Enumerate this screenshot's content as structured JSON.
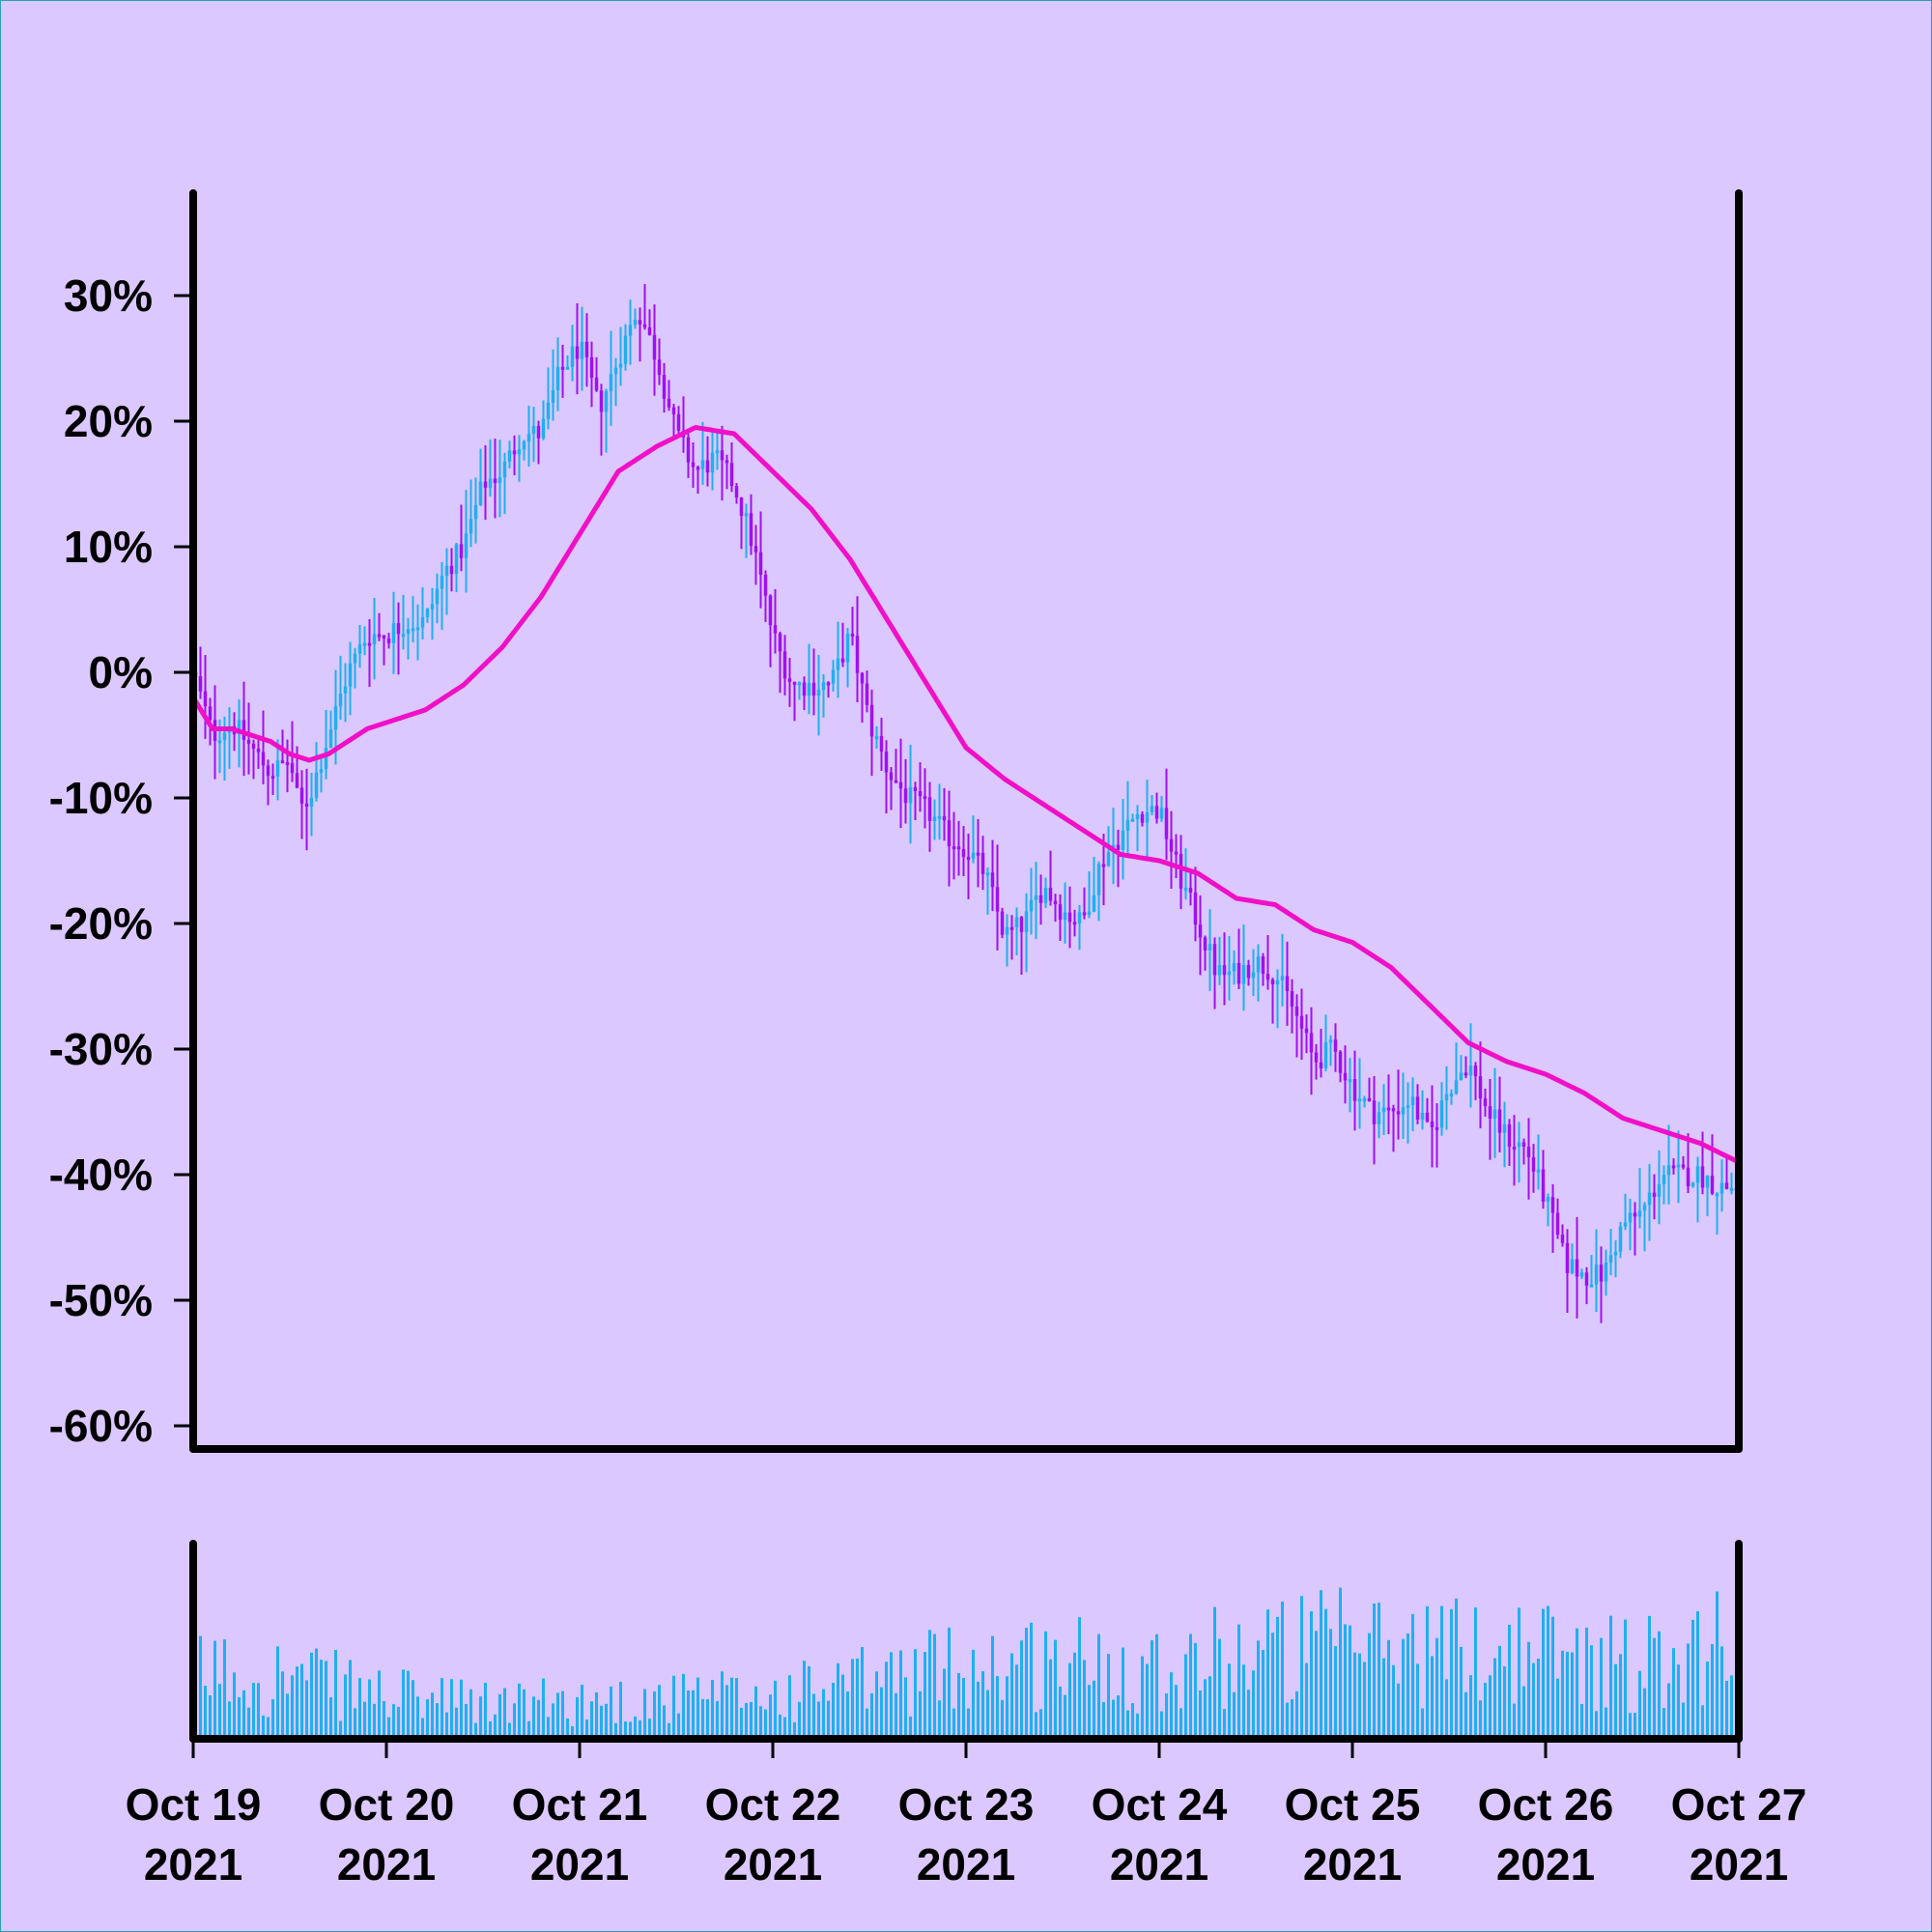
{
  "chart_data": {
    "type": "candlestick",
    "title": "",
    "xlabel": "",
    "ylabel": "",
    "x_range": [
      "2021-10-19",
      "2021-10-27"
    ],
    "ylim": [
      -0.62,
      0.38
    ],
    "y_ticks": [
      0.3,
      0.2,
      0.1,
      0.0,
      -0.1,
      -0.2,
      -0.3,
      -0.4,
      -0.5,
      -0.6
    ],
    "y_tick_labels": [
      "30%",
      "20%",
      "10%",
      "0%",
      "-10%",
      "-20%",
      "-30%",
      "-40%",
      "-50%",
      "-60%"
    ],
    "x_ticks": [
      "2021-10-19",
      "2021-10-20",
      "2021-10-21",
      "2021-10-22",
      "2021-10-23",
      "2021-10-24",
      "2021-10-25",
      "2021-10-26",
      "2021-10-27"
    ],
    "x_tick_labels": [
      [
        "Oct 19",
        "2021"
      ],
      [
        "Oct 20",
        "2021"
      ],
      [
        "Oct 21",
        "2021"
      ],
      [
        "Oct 22",
        "2021"
      ],
      [
        "Oct 23",
        "2021"
      ],
      [
        "Oct 24",
        "2021"
      ],
      [
        "Oct 25",
        "2021"
      ],
      [
        "Oct 26",
        "2021"
      ],
      [
        "Oct 27",
        "2021"
      ]
    ],
    "colors": {
      "background": "#dbc8fe",
      "up": "#1fb0f0",
      "down": "#a010f0",
      "moving_average": "#f010c8",
      "volume": "#1fb0f0",
      "axes": "#000000"
    },
    "series": [
      {
        "name": "",
        "kind": "close_path_approx",
        "x_days": [
          0,
          0.1,
          0.2,
          0.3,
          0.4,
          0.5,
          0.55,
          0.6,
          0.7,
          0.8,
          0.9,
          1.0,
          1.1,
          1.2,
          1.3,
          1.4,
          1.5,
          1.6,
          1.7,
          1.8,
          1.9,
          2.0,
          2.1,
          2.2,
          2.3,
          2.4,
          2.5,
          2.6,
          2.7,
          2.8,
          2.9,
          3.0,
          3.1,
          3.2,
          3.3,
          3.4,
          3.5,
          3.6,
          3.7,
          3.8,
          3.9,
          4.0,
          4.1,
          4.2,
          4.3,
          4.4,
          4.5,
          4.6,
          4.7,
          4.8,
          4.9,
          5.0,
          5.1,
          5.2,
          5.3,
          5.4,
          5.5,
          5.6,
          5.7,
          5.8,
          5.9,
          6.0,
          6.1,
          6.2,
          6.3,
          6.4,
          6.5,
          6.6,
          6.7,
          6.8,
          6.9,
          7.0,
          7.1,
          7.2,
          7.3,
          7.4,
          7.5,
          7.6,
          7.7,
          7.8,
          7.9,
          8.0
        ],
        "values": [
          0.0,
          -0.05,
          -0.04,
          -0.06,
          -0.08,
          -0.07,
          -0.11,
          -0.1,
          -0.05,
          0.0,
          0.03,
          0.03,
          0.04,
          0.04,
          0.08,
          0.1,
          0.15,
          0.16,
          0.19,
          0.19,
          0.24,
          0.26,
          0.21,
          0.25,
          0.29,
          0.25,
          0.19,
          0.16,
          0.17,
          0.15,
          0.1,
          0.03,
          -0.01,
          -0.01,
          -0.01,
          0.03,
          -0.04,
          -0.08,
          -0.1,
          -0.11,
          -0.13,
          -0.14,
          -0.16,
          -0.21,
          -0.2,
          -0.17,
          -0.19,
          -0.2,
          -0.15,
          -0.13,
          -0.11,
          -0.11,
          -0.16,
          -0.2,
          -0.24,
          -0.24,
          -0.23,
          -0.24,
          -0.27,
          -0.31,
          -0.3,
          -0.33,
          -0.35,
          -0.35,
          -0.34,
          -0.37,
          -0.33,
          -0.31,
          -0.35,
          -0.37,
          -0.38,
          -0.42,
          -0.47,
          -0.48,
          -0.48,
          -0.44,
          -0.43,
          -0.4,
          -0.4,
          -0.4,
          -0.41,
          -0.41
        ]
      },
      {
        "name": "",
        "kind": "moving_average",
        "x_days": [
          0,
          0.1,
          0.2,
          0.3,
          0.4,
          0.5,
          0.6,
          0.7,
          0.8,
          0.9,
          1.0,
          1.2,
          1.4,
          1.6,
          1.8,
          2.0,
          2.2,
          2.4,
          2.6,
          2.8,
          3.0,
          3.2,
          3.4,
          3.6,
          3.8,
          4.0,
          4.2,
          4.4,
          4.6,
          4.8,
          5.0,
          5.2,
          5.4,
          5.6,
          5.8,
          6.0,
          6.2,
          6.4,
          6.6,
          6.8,
          7.0,
          7.2,
          7.4,
          7.6,
          7.8,
          8.0
        ],
        "values": [
          -0.02,
          -0.045,
          -0.045,
          -0.05,
          -0.055,
          -0.065,
          -0.07,
          -0.065,
          -0.055,
          -0.045,
          -0.04,
          -0.03,
          -0.01,
          0.02,
          0.06,
          0.11,
          0.16,
          0.18,
          0.195,
          0.19,
          0.16,
          0.13,
          0.09,
          0.04,
          -0.01,
          -0.06,
          -0.085,
          -0.105,
          -0.125,
          -0.145,
          -0.15,
          -0.16,
          -0.18,
          -0.185,
          -0.205,
          -0.215,
          -0.235,
          -0.265,
          -0.295,
          -0.31,
          -0.32,
          -0.335,
          -0.355,
          -0.365,
          -0.375,
          -0.39
        ]
      }
    ],
    "candle_step_days": 0.025,
    "volume_envelope": {
      "x_days": [
        0,
        0.5,
        1.0,
        1.5,
        2.0,
        2.5,
        3.0,
        3.5,
        4.0,
        4.5,
        5.0,
        5.5,
        6.0,
        6.5,
        7.0,
        7.5,
        8.0
      ],
      "relative_level": [
        0.55,
        0.5,
        0.35,
        0.28,
        0.3,
        0.32,
        0.35,
        0.45,
        0.6,
        0.62,
        0.6,
        0.7,
        0.75,
        0.72,
        0.7,
        0.6,
        0.85
      ]
    }
  }
}
